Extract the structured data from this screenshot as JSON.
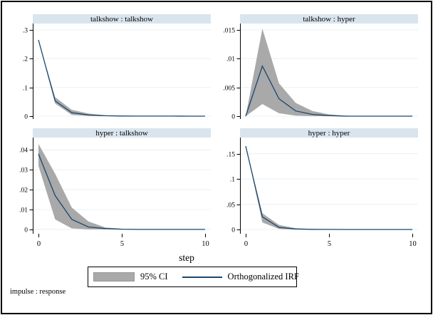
{
  "figure": {
    "xlabel": "step",
    "note": "impulse : response",
    "legend_ci_label": "95% CI",
    "legend_irf_label": "Orthogonalized IRF",
    "colors": {
      "irf_line": "#1a476f",
      "ci_fill": "#a9a9a9",
      "ci_edge": "#979797",
      "title_bar": "#d9e5ee",
      "gridline": "#e8f0f4",
      "axis": "#000000",
      "background": "#ffffff"
    }
  },
  "chart_data": [
    {
      "type": "area",
      "title": "talkshow : talkshow",
      "x": [
        0,
        1,
        2,
        3,
        4,
        5,
        6,
        7,
        8,
        9,
        10
      ],
      "series": [
        {
          "name": "Orthogonalized IRF",
          "values": [
            0.265,
            0.053,
            0.012,
            0.004,
            0.0015,
            0.0005,
            0.0002,
            0.0001,
            0.0001,
            0,
            0
          ]
        },
        {
          "name": "95% CI lower",
          "values": [
            0.265,
            0.044,
            0.004,
            0.0008,
            0,
            0,
            0,
            0,
            0,
            0,
            0
          ]
        },
        {
          "name": "95% CI upper",
          "values": [
            0.265,
            0.066,
            0.022,
            0.009,
            0.003,
            0.001,
            0.0004,
            0.0002,
            0.0001,
            0,
            0
          ]
        }
      ],
      "xlim": [
        -0.34,
        10.34
      ],
      "ylim": [
        -0.01,
        0.322
      ],
      "yticks": [
        0,
        0.1,
        0.2,
        0.3
      ],
      "ytick_labels": [
        "0",
        ".1",
        ".2",
        ".3"
      ],
      "xticks": [
        0,
        5,
        10
      ],
      "xtick_labels": [
        "0",
        "5",
        "10"
      ],
      "show_xtick_labels": false
    },
    {
      "type": "area",
      "title": "talkshow : hyper",
      "x": [
        0,
        1,
        2,
        3,
        4,
        5,
        6,
        7,
        8,
        9,
        10
      ],
      "series": [
        {
          "name": "Orthogonalized IRF",
          "values": [
            0,
            0.0087,
            0.003,
            0.0009,
            0.0003,
            0.0001,
            0,
            0,
            0,
            0,
            0
          ]
        },
        {
          "name": "95% CI lower",
          "values": [
            0,
            0.0021,
            0.0005,
            0.0001,
            0,
            0,
            0,
            0,
            0,
            0,
            0
          ]
        },
        {
          "name": "95% CI upper",
          "values": [
            0,
            0.0152,
            0.0057,
            0.0023,
            0.0009,
            0.0003,
            0.0001,
            0,
            0,
            0,
            0
          ]
        }
      ],
      "xlim": [
        -0.34,
        10.34
      ],
      "ylim": [
        -0.0005,
        0.0161
      ],
      "yticks": [
        0,
        0.005,
        0.01,
        0.015
      ],
      "ytick_labels": [
        "0",
        ".005",
        ".01",
        ".015"
      ],
      "xticks": [
        0,
        5,
        10
      ],
      "xtick_labels": [
        "0",
        "5",
        "10"
      ],
      "show_xtick_labels": false
    },
    {
      "type": "area",
      "title": "hyper : talkshow",
      "x": [
        0,
        1,
        2,
        3,
        4,
        5,
        6,
        7,
        8,
        9,
        10
      ],
      "series": [
        {
          "name": "Orthogonalized IRF",
          "values": [
            0.038,
            0.017,
            0.005,
            0.0012,
            0.0004,
            0.0001,
            0,
            0,
            0,
            0,
            0
          ]
        },
        {
          "name": "95% CI lower",
          "values": [
            0.032,
            0.005,
            0.0005,
            0,
            0,
            0,
            0,
            0,
            0,
            0,
            0
          ]
        },
        {
          "name": "95% CI upper",
          "values": [
            0.043,
            0.028,
            0.011,
            0.004,
            0.001,
            0.0003,
            0,
            0,
            0,
            0,
            0
          ]
        }
      ],
      "xlim": [
        -0.34,
        10.34
      ],
      "ylim": [
        -0.0022,
        0.0462
      ],
      "yticks": [
        0,
        0.01,
        0.02,
        0.03,
        0.04
      ],
      "ytick_labels": [
        "0",
        ".01",
        ".02",
        ".03",
        ".04"
      ],
      "xticks": [
        0,
        5,
        10
      ],
      "xtick_labels": [
        "0",
        "5",
        "10"
      ],
      "show_xtick_labels": true
    },
    {
      "type": "area",
      "title": "hyper : hyper",
      "x": [
        0,
        1,
        2,
        3,
        4,
        5,
        6,
        7,
        8,
        9,
        10
      ],
      "series": [
        {
          "name": "Orthogonalized IRF",
          "values": [
            0.165,
            0.025,
            0.004,
            0.001,
            0.0003,
            0.0001,
            0,
            0,
            0,
            0,
            0
          ]
        },
        {
          "name": "95% CI lower",
          "values": [
            0.165,
            0.014,
            0.001,
            0,
            0,
            0,
            0,
            0,
            0,
            0,
            0
          ]
        },
        {
          "name": "95% CI upper",
          "values": [
            0.165,
            0.032,
            0.009,
            0.0025,
            0.0008,
            0.0002,
            0,
            0,
            0,
            0,
            0
          ]
        }
      ],
      "xlim": [
        -0.34,
        10.34
      ],
      "ylim": [
        -0.0085,
        0.182
      ],
      "yticks": [
        0,
        0.05,
        0.1,
        0.15
      ],
      "ytick_labels": [
        "0",
        ".05",
        ".1",
        ".15"
      ],
      "xticks": [
        0,
        5,
        10
      ],
      "xtick_labels": [
        "0",
        "5",
        "10"
      ],
      "show_xtick_labels": true
    }
  ]
}
